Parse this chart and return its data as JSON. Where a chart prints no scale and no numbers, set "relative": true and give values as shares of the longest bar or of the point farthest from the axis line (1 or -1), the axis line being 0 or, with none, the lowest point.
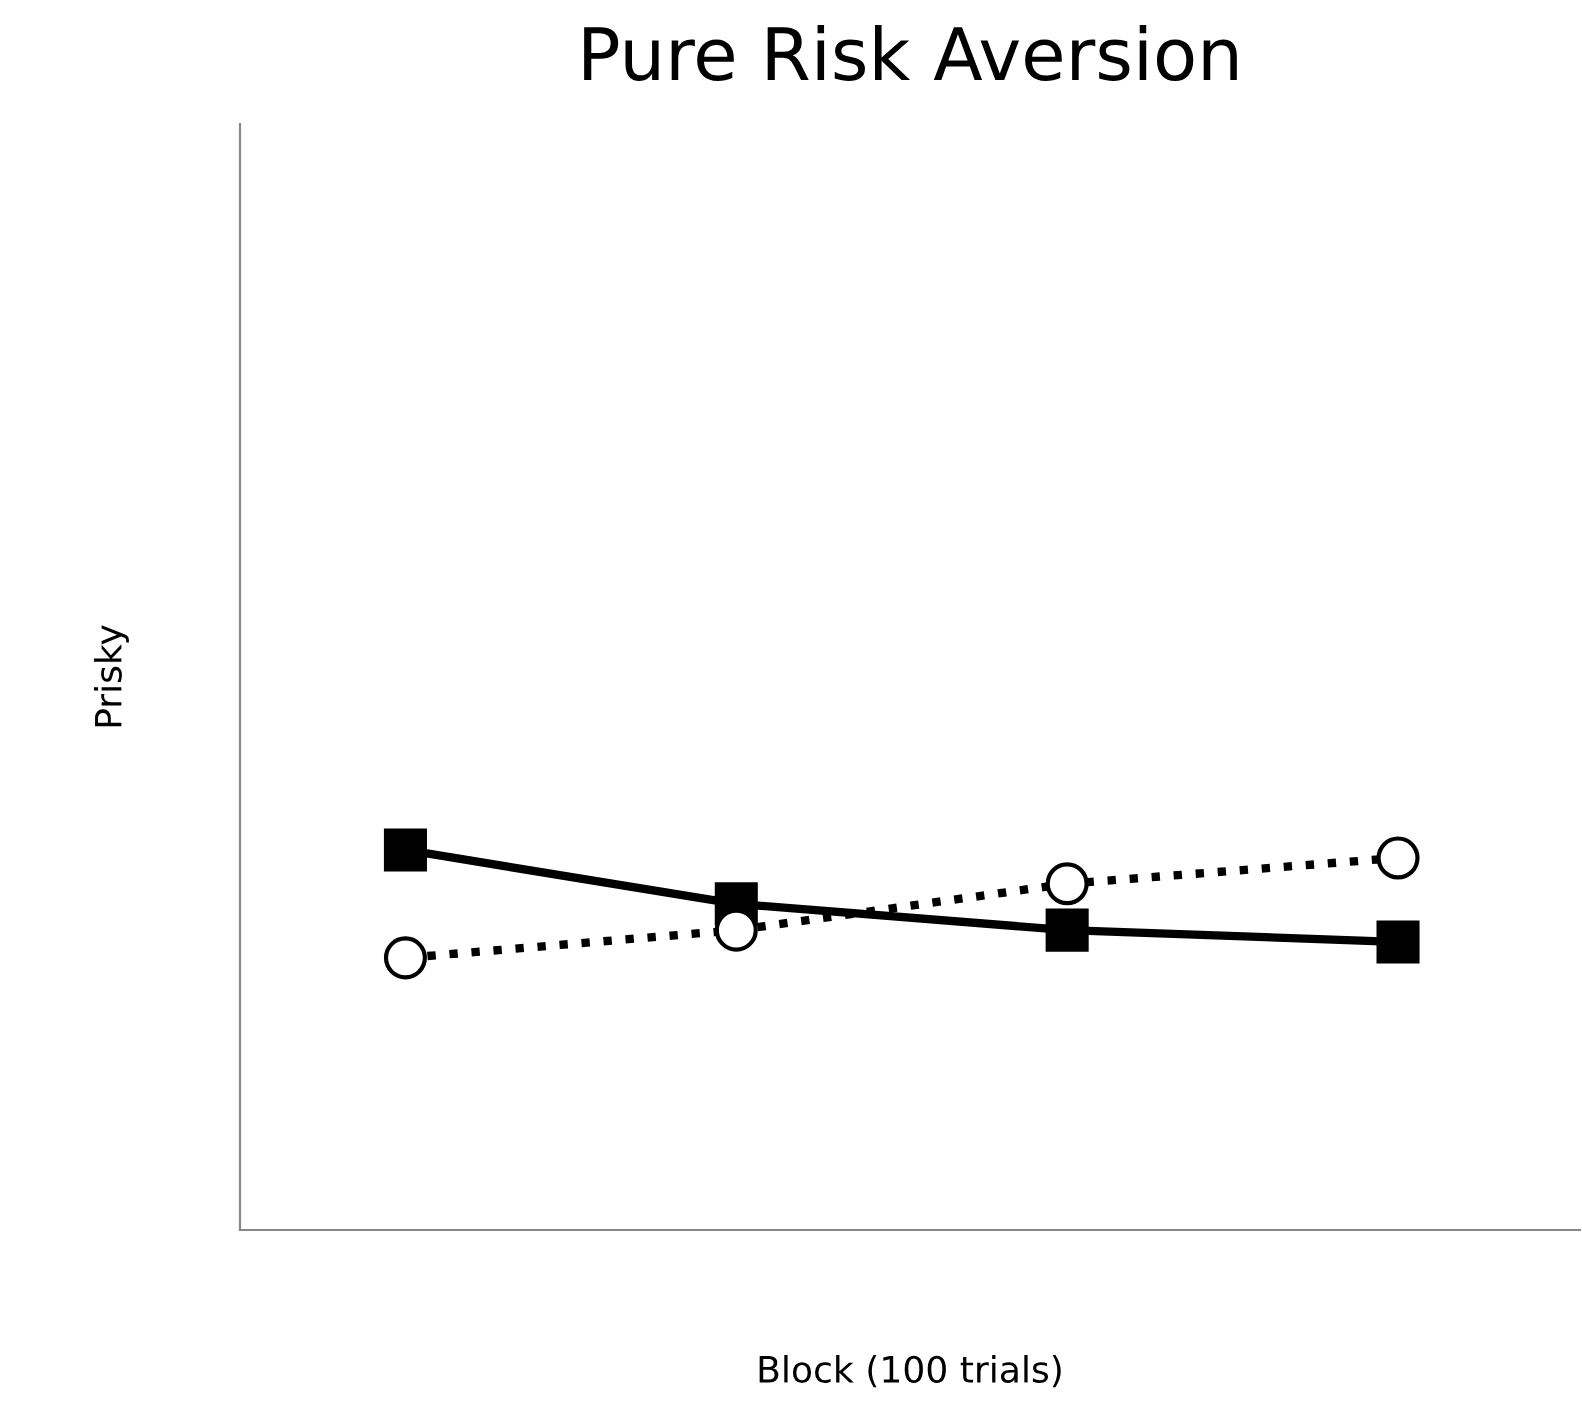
{
  "chart_data": {
    "type": "line",
    "title": "Pure Risk Aversion",
    "xlabel": "Block (100 trials)",
    "ylabel": "Prisky",
    "categories": [
      null,
      null,
      null,
      null
    ],
    "relative": true,
    "grid": false,
    "legend": false,
    "tick_labels": false,
    "series": [
      {
        "color": "#000000",
        "values": [
          1,
          0.858,
          0.789,
          0.758
        ],
        "marker": "square",
        "line_style": "solid"
      },
      {
        "color": "#000000",
        "values": [
          0.716,
          0.789,
          0.911,
          0.979
        ],
        "marker": "circle",
        "line_style": "dotted"
      }
    ]
  }
}
